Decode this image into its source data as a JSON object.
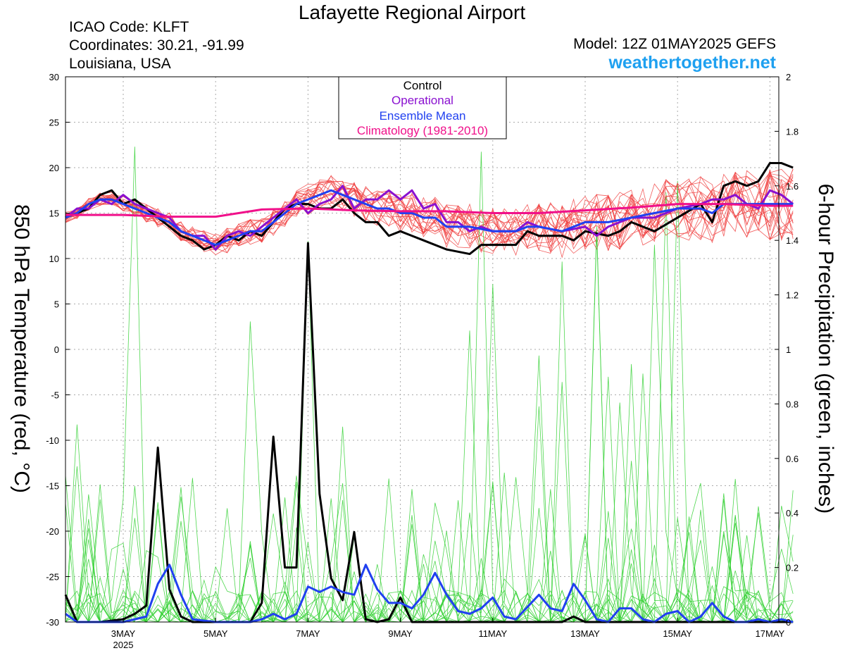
{
  "header": {
    "title": "Lafayette Regional Airport",
    "icao": "ICAO Code: KLFT",
    "coords": "Coordinates: 30.21, -91.99",
    "location": "Louisiana, USA",
    "model": "Model: 12Z 01MAY2025 GEFS",
    "site": "weathertogether.net"
  },
  "colors": {
    "control": "#000000",
    "operational": "#8a10d0",
    "ensemble_mean": "#2040f0",
    "climatology": "#f0108a",
    "members_temp": "#f04040",
    "members_precip": "#30d030",
    "site": "#1ea0f0"
  },
  "chart_data": {
    "type": "line",
    "xlabel": "",
    "y_left": {
      "label": "850 hPa Temperature (red, °C)",
      "range": [
        -30,
        30
      ],
      "ticks": [
        30,
        25,
        20,
        15,
        10,
        5,
        0,
        -5,
        -10,
        -15,
        -20,
        -25,
        -30
      ]
    },
    "y_right": {
      "label": "6-hour Precipitation (green, inches)",
      "range": [
        0,
        2
      ],
      "ticks": [
        2,
        1.8,
        1.6,
        1.4,
        1.2,
        1,
        0.8,
        0.6,
        0.4,
        0.2,
        0
      ]
    },
    "x_range": [
      1.75,
      17.5
    ],
    "x_ticks": [
      {
        "day": 3,
        "label": "3MAY",
        "sub": "2025"
      },
      {
        "day": 5,
        "label": "5MAY",
        "sub": ""
      },
      {
        "day": 7,
        "label": "7MAY",
        "sub": ""
      },
      {
        "day": 9,
        "label": "9MAY",
        "sub": ""
      },
      {
        "day": 11,
        "label": "11MAY",
        "sub": ""
      },
      {
        "day": 13,
        "label": "13MAY",
        "sub": ""
      },
      {
        "day": 15,
        "label": "15MAY",
        "sub": ""
      },
      {
        "day": 17,
        "label": "17MAY",
        "sub": ""
      }
    ],
    "grid": true,
    "legend": {
      "position": "top-center",
      "entries": [
        "Control",
        "Operational",
        "Ensemble Mean",
        "Climatology (1981-2010)"
      ]
    },
    "temperature_series": [
      {
        "name": "Control",
        "color": "#000000",
        "points": [
          [
            1.75,
            14.5
          ],
          [
            2.0,
            15.0
          ],
          [
            2.25,
            15.5
          ],
          [
            2.5,
            17.0
          ],
          [
            2.75,
            17.5
          ],
          [
            3.0,
            16.0
          ],
          [
            3.25,
            16.5
          ],
          [
            3.5,
            15.5
          ],
          [
            3.75,
            14.5
          ],
          [
            4.0,
            13.5
          ],
          [
            4.25,
            12.5
          ],
          [
            4.5,
            12.0
          ],
          [
            4.75,
            11.0
          ],
          [
            5.0,
            11.5
          ],
          [
            5.25,
            12.5
          ],
          [
            5.5,
            12.0
          ],
          [
            5.75,
            13.0
          ],
          [
            6.0,
            12.5
          ],
          [
            6.25,
            14.0
          ],
          [
            6.5,
            15.5
          ],
          [
            6.75,
            16.0
          ],
          [
            7.0,
            16.0
          ],
          [
            7.25,
            15.5
          ],
          [
            7.5,
            15.5
          ],
          [
            7.75,
            16.5
          ],
          [
            8.0,
            15.0
          ],
          [
            8.25,
            14.0
          ],
          [
            8.5,
            14.0
          ],
          [
            8.75,
            12.5
          ],
          [
            9.0,
            13.0
          ],
          [
            9.25,
            12.5
          ],
          [
            9.5,
            12.0
          ],
          [
            10.0,
            11.0
          ],
          [
            10.5,
            10.5
          ],
          [
            10.75,
            11.5
          ],
          [
            11.0,
            11.5
          ],
          [
            11.5,
            11.5
          ],
          [
            11.75,
            13.0
          ],
          [
            12.0,
            12.5
          ],
          [
            12.5,
            12.5
          ],
          [
            12.75,
            12.0
          ],
          [
            13.0,
            13.0
          ],
          [
            13.5,
            12.5
          ],
          [
            13.75,
            13.0
          ],
          [
            14.0,
            14.0
          ],
          [
            14.5,
            13.0
          ],
          [
            15.0,
            14.5
          ],
          [
            15.5,
            16.0
          ],
          [
            15.75,
            14.0
          ],
          [
            16.0,
            18.0
          ],
          [
            16.25,
            18.5
          ],
          [
            16.5,
            18.0
          ],
          [
            16.75,
            18.5
          ],
          [
            17.0,
            20.5
          ],
          [
            17.25,
            20.5
          ],
          [
            17.5,
            20.0
          ]
        ]
      },
      {
        "name": "Operational",
        "color": "#8a10d0",
        "points": [
          [
            1.75,
            14.5
          ],
          [
            2.0,
            15.5
          ],
          [
            2.25,
            15.5
          ],
          [
            2.5,
            16.5
          ],
          [
            2.75,
            16.0
          ],
          [
            3.0,
            17.0
          ],
          [
            3.25,
            16.0
          ],
          [
            3.5,
            15.5
          ],
          [
            3.75,
            15.0
          ],
          [
            4.0,
            14.5
          ],
          [
            4.25,
            13.0
          ],
          [
            4.5,
            12.5
          ],
          [
            4.75,
            12.5
          ],
          [
            5.0,
            11.0
          ],
          [
            5.25,
            12.5
          ],
          [
            5.5,
            13.0
          ],
          [
            5.75,
            12.5
          ],
          [
            6.0,
            13.5
          ],
          [
            6.25,
            14.5
          ],
          [
            6.5,
            15.5
          ],
          [
            6.75,
            16.5
          ],
          [
            7.0,
            15.0
          ],
          [
            7.25,
            16.0
          ],
          [
            7.5,
            16.5
          ],
          [
            7.75,
            18.0
          ],
          [
            8.0,
            15.5
          ],
          [
            8.25,
            16.5
          ],
          [
            8.5,
            16.5
          ],
          [
            8.75,
            17.5
          ],
          [
            9.0,
            16.5
          ],
          [
            9.25,
            17.5
          ],
          [
            9.5,
            15.5
          ],
          [
            9.75,
            16.0
          ],
          [
            10.0,
            14.0
          ],
          [
            10.25,
            14.0
          ],
          [
            10.5,
            13.0
          ],
          [
            10.75,
            13.5
          ],
          [
            11.0,
            13.0
          ],
          [
            11.5,
            13.0
          ],
          [
            11.75,
            14.0
          ],
          [
            12.0,
            13.5
          ],
          [
            12.5,
            13.0
          ],
          [
            13.0,
            13.5
          ],
          [
            13.25,
            12.5
          ],
          [
            13.5,
            13.5
          ],
          [
            13.75,
            14.0
          ],
          [
            14.0,
            14.5
          ],
          [
            14.5,
            14.5
          ],
          [
            15.0,
            15.5
          ],
          [
            15.5,
            16.0
          ],
          [
            15.75,
            16.5
          ],
          [
            16.0,
            16.5
          ],
          [
            16.25,
            17.0
          ],
          [
            16.5,
            16.0
          ],
          [
            16.75,
            15.5
          ],
          [
            17.0,
            17.5
          ],
          [
            17.25,
            17.0
          ],
          [
            17.5,
            16.0
          ]
        ]
      },
      {
        "name": "Ensemble Mean",
        "color": "#2040f0",
        "points": [
          [
            1.75,
            14.5
          ],
          [
            2.0,
            15.0
          ],
          [
            2.25,
            16.0
          ],
          [
            2.5,
            16.5
          ],
          [
            2.75,
            16.5
          ],
          [
            3.0,
            16.0
          ],
          [
            3.25,
            15.5
          ],
          [
            3.5,
            15.0
          ],
          [
            3.75,
            14.5
          ],
          [
            4.0,
            14.0
          ],
          [
            4.25,
            13.0
          ],
          [
            4.5,
            12.5
          ],
          [
            4.75,
            12.0
          ],
          [
            5.0,
            11.5
          ],
          [
            5.25,
            12.0
          ],
          [
            5.5,
            12.5
          ],
          [
            5.75,
            13.0
          ],
          [
            6.0,
            13.0
          ],
          [
            6.25,
            14.0
          ],
          [
            6.5,
            15.0
          ],
          [
            6.75,
            16.0
          ],
          [
            7.0,
            16.5
          ],
          [
            7.25,
            17.0
          ],
          [
            7.5,
            17.5
          ],
          [
            7.75,
            17.0
          ],
          [
            8.0,
            16.5
          ],
          [
            8.25,
            16.0
          ],
          [
            8.5,
            15.5
          ],
          [
            8.75,
            15.5
          ],
          [
            9.0,
            15.0
          ],
          [
            9.25,
            15.0
          ],
          [
            9.5,
            14.5
          ],
          [
            9.75,
            14.5
          ],
          [
            10.0,
            13.5
          ],
          [
            10.5,
            13.5
          ],
          [
            11.0,
            13.0
          ],
          [
            11.5,
            13.0
          ],
          [
            11.75,
            13.5
          ],
          [
            12.0,
            13.5
          ],
          [
            12.5,
            13.0
          ],
          [
            13.0,
            14.0
          ],
          [
            13.5,
            14.0
          ],
          [
            14.0,
            14.5
          ],
          [
            14.5,
            15.0
          ],
          [
            15.0,
            15.5
          ],
          [
            15.5,
            15.5
          ],
          [
            15.75,
            15.0
          ],
          [
            16.0,
            16.0
          ],
          [
            16.5,
            16.0
          ],
          [
            17.0,
            16.0
          ],
          [
            17.5,
            16.0
          ]
        ]
      },
      {
        "name": "Climatology (1981-2010)",
        "color": "#f0108a",
        "points": [
          [
            1.75,
            14.8
          ],
          [
            3.0,
            14.8
          ],
          [
            4.0,
            14.6
          ],
          [
            5.0,
            14.6
          ],
          [
            5.5,
            15.0
          ],
          [
            6.0,
            15.4
          ],
          [
            7.0,
            15.5
          ],
          [
            8.0,
            15.3
          ],
          [
            9.0,
            15.2
          ],
          [
            10.0,
            15.2
          ],
          [
            11.0,
            15.0
          ],
          [
            12.0,
            15.0
          ],
          [
            13.0,
            15.3
          ],
          [
            14.0,
            15.6
          ],
          [
            15.0,
            16.0
          ],
          [
            16.0,
            16.0
          ],
          [
            17.0,
            15.8
          ],
          [
            17.5,
            15.8
          ]
        ]
      }
    ],
    "precip_series": [
      {
        "name": "Control",
        "color": "#000000",
        "points": [
          [
            1.75,
            0.1
          ],
          [
            2.0,
            0.0
          ],
          [
            2.5,
            0.0
          ],
          [
            3.0,
            0.01
          ],
          [
            3.25,
            0.03
          ],
          [
            3.5,
            0.06
          ],
          [
            3.75,
            0.64
          ],
          [
            4.0,
            0.12
          ],
          [
            4.25,
            0.02
          ],
          [
            4.5,
            0.0
          ],
          [
            5.0,
            0.0
          ],
          [
            5.75,
            0.0
          ],
          [
            6.0,
            0.07
          ],
          [
            6.25,
            0.68
          ],
          [
            6.5,
            0.2
          ],
          [
            6.75,
            0.2
          ],
          [
            7.0,
            1.39
          ],
          [
            7.25,
            0.47
          ],
          [
            7.5,
            0.16
          ],
          [
            7.75,
            0.08
          ],
          [
            8.0,
            0.33
          ],
          [
            8.25,
            0.01
          ],
          [
            8.5,
            0.0
          ],
          [
            8.75,
            0.01
          ],
          [
            9.0,
            0.09
          ],
          [
            9.25,
            0.0
          ],
          [
            9.5,
            0.0
          ],
          [
            12.5,
            0.0
          ],
          [
            12.75,
            0.02
          ],
          [
            13.0,
            0.0
          ],
          [
            17.5,
            0.0
          ]
        ]
      },
      {
        "name": "Ensemble Mean",
        "color": "#2040f0",
        "points": [
          [
            1.75,
            0.03
          ],
          [
            2.0,
            0.0
          ],
          [
            2.5,
            0.0
          ],
          [
            3.0,
            0.0
          ],
          [
            3.5,
            0.02
          ],
          [
            3.75,
            0.14
          ],
          [
            4.0,
            0.21
          ],
          [
            4.25,
            0.1
          ],
          [
            4.5,
            0.01
          ],
          [
            5.0,
            0.0
          ],
          [
            5.75,
            0.0
          ],
          [
            6.0,
            0.01
          ],
          [
            6.25,
            0.03
          ],
          [
            6.5,
            0.01
          ],
          [
            6.75,
            0.03
          ],
          [
            7.0,
            0.13
          ],
          [
            7.25,
            0.11
          ],
          [
            7.5,
            0.13
          ],
          [
            7.75,
            0.11
          ],
          [
            8.0,
            0.1
          ],
          [
            8.25,
            0.21
          ],
          [
            8.5,
            0.12
          ],
          [
            8.75,
            0.07
          ],
          [
            9.0,
            0.07
          ],
          [
            9.25,
            0.05
          ],
          [
            9.5,
            0.1
          ],
          [
            9.75,
            0.18
          ],
          [
            10.0,
            0.1
          ],
          [
            10.25,
            0.04
          ],
          [
            10.5,
            0.03
          ],
          [
            10.75,
            0.05
          ],
          [
            11.0,
            0.09
          ],
          [
            11.25,
            0.02
          ],
          [
            11.5,
            0.01
          ],
          [
            12.0,
            0.1
          ],
          [
            12.25,
            0.05
          ],
          [
            12.5,
            0.04
          ],
          [
            12.75,
            0.14
          ],
          [
            13.0,
            0.08
          ],
          [
            13.25,
            0.01
          ],
          [
            13.5,
            0.0
          ],
          [
            13.75,
            0.05
          ],
          [
            14.0,
            0.05
          ],
          [
            14.25,
            0.01
          ],
          [
            14.5,
            0.0
          ],
          [
            14.75,
            0.03
          ],
          [
            15.0,
            0.04
          ],
          [
            15.25,
            0.0
          ],
          [
            15.5,
            0.02
          ],
          [
            15.75,
            0.07
          ],
          [
            16.0,
            0.02
          ],
          [
            16.25,
            0.0
          ],
          [
            16.5,
            0.0
          ],
          [
            16.75,
            0.01
          ],
          [
            17.0,
            0.0
          ],
          [
            17.25,
            0.01
          ],
          [
            17.5,
            0.0
          ]
        ]
      }
    ]
  }
}
